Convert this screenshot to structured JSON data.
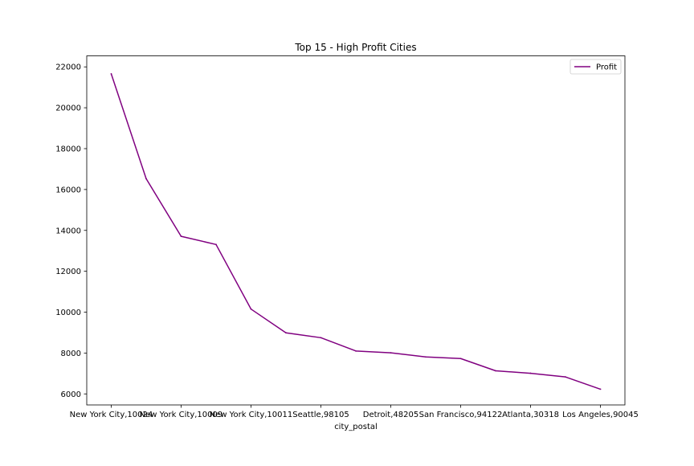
{
  "chart_data": {
    "type": "line",
    "title": "Top 15 - High Profit Cities",
    "xlabel": "city_postal",
    "ylabel": "",
    "x_tick_labels": [
      "New York City,10024",
      "New York City,10009",
      "New York City,10011",
      "Seattle,98105",
      "Detroit,48205",
      "San Francisco,94122",
      "Atlanta,30318",
      "Los Angeles,90045"
    ],
    "x_tick_indices": [
      0,
      2,
      4,
      6,
      8,
      10,
      12,
      14
    ],
    "y_ticks": [
      6000,
      8000,
      10000,
      12000,
      14000,
      16000,
      18000,
      20000,
      22000
    ],
    "ylim": [
      5460,
      22540
    ],
    "xlim": [
      -0.7,
      14.7
    ],
    "series": [
      {
        "name": "Profit",
        "color": "#800080",
        "values": [
          21660,
          16530,
          13710,
          13310,
          10150,
          8990,
          8750,
          8100,
          8010,
          7810,
          7730,
          7130,
          7010,
          6830,
          6230
        ]
      }
    ],
    "legend": {
      "position": "top-right"
    },
    "grid": false
  }
}
